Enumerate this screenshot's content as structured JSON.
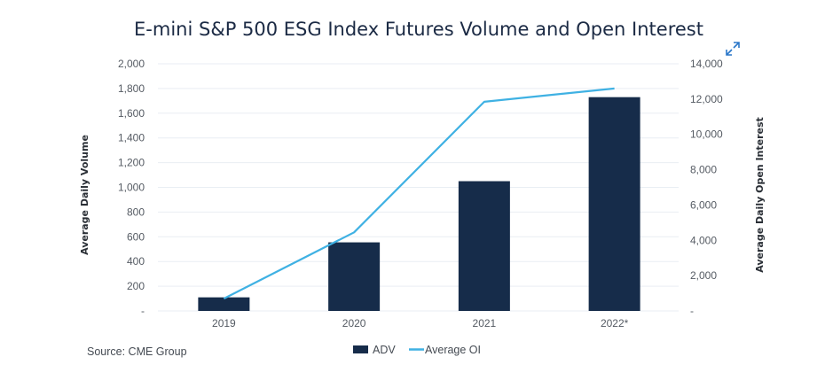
{
  "chart_data": {
    "type": "bar",
    "title": "E-mini S&P 500 ESG Index Futures Volume and Open Interest",
    "categories": [
      "2019",
      "2020",
      "2021",
      "2022*"
    ],
    "series": [
      {
        "name": "ADV",
        "type": "bar",
        "axis": "left",
        "color": "#162c4a",
        "values": [
          110,
          555,
          1050,
          1730
        ]
      },
      {
        "name": "Average OI",
        "type": "line",
        "axis": "right",
        "color": "#3fb1e3",
        "values": [
          700,
          4450,
          11850,
          12600
        ]
      }
    ],
    "ylabel": "Average Daily Volume",
    "ylabel_right": "Average Daily Open Interest",
    "xlabel": "",
    "ylim": [
      0,
      2000
    ],
    "ylim_right": [
      0,
      14000
    ],
    "yticks": [
      "-",
      "200",
      "400",
      "600",
      "800",
      "1,000",
      "1,200",
      "1,400",
      "1,600",
      "1,800",
      "2,000"
    ],
    "yticks_right": [
      "-",
      "2,000",
      "4,000",
      "6,000",
      "8,000",
      "10,000",
      "12,000",
      "14,000"
    ],
    "grid": true,
    "legend": {
      "placement": "bottom-center",
      "entries": [
        "ADV",
        "Average OI"
      ]
    },
    "source": "Source: CME Group"
  },
  "ui": {
    "expand_icon": "expand-arrows-icon"
  }
}
